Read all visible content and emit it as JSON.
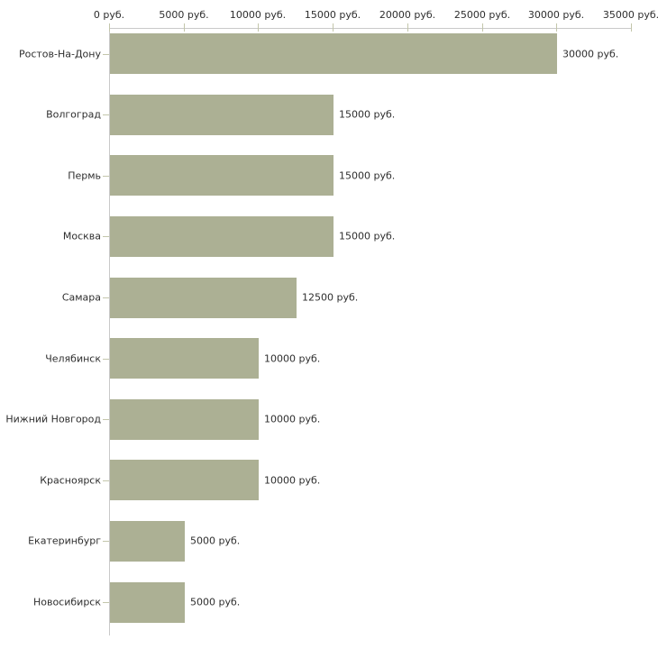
{
  "chart_data": {
    "type": "bar",
    "orientation": "horizontal",
    "title": "",
    "categories": [
      "Ростов-На-Дону",
      "Волгоград",
      "Пермь",
      "Москва",
      "Самара",
      "Челябинск",
      "Нижний Новгород",
      "Красноярск",
      "Екатеринбург",
      "Новосибирск"
    ],
    "values": [
      30000,
      15000,
      15000,
      15000,
      12500,
      10000,
      10000,
      10000,
      5000,
      5000
    ],
    "value_labels": [
      "30000 руб.",
      "15000 руб.",
      "15000 руб.",
      "15000 руб.",
      "12500 руб.",
      "10000 руб.",
      "10000 руб.",
      "10000 руб.",
      "5000 руб.",
      "5000 руб."
    ],
    "x_axis": {
      "position": "top",
      "min": 0,
      "max": 35000,
      "step": 5000,
      "tick_labels": [
        "0 руб.",
        "5000 руб.",
        "10000 руб.",
        "15000 руб.",
        "20000 руб.",
        "25000 руб.",
        "30000 руб.",
        "35000 руб."
      ]
    },
    "ylabel": "",
    "xlabel": "",
    "legend": "none",
    "grid": false,
    "colors": {
      "bar": "#acb094",
      "axis_line": "#c9c9c9",
      "tick": "#c3c6ab",
      "text": "#2e2e2e",
      "background": "#ffffff"
    }
  }
}
